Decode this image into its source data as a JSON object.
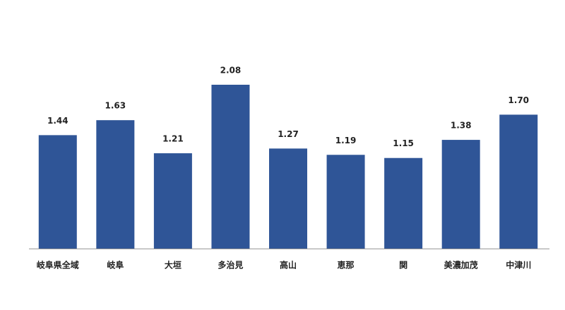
{
  "chart_data": {
    "type": "bar",
    "categories": [
      "岐阜県全域",
      "岐阜",
      "大垣",
      "多治見",
      "高山",
      "恵那",
      "関",
      "美濃加茂",
      "中津川"
    ],
    "values": [
      1.44,
      1.63,
      1.21,
      2.08,
      1.27,
      1.19,
      1.15,
      1.38,
      1.7
    ],
    "value_labels": [
      "1.44",
      "1.63",
      "1.21",
      "2.08",
      "1.27",
      "1.19",
      "1.15",
      "1.38",
      "1.70"
    ],
    "color": "#2f5597"
  }
}
